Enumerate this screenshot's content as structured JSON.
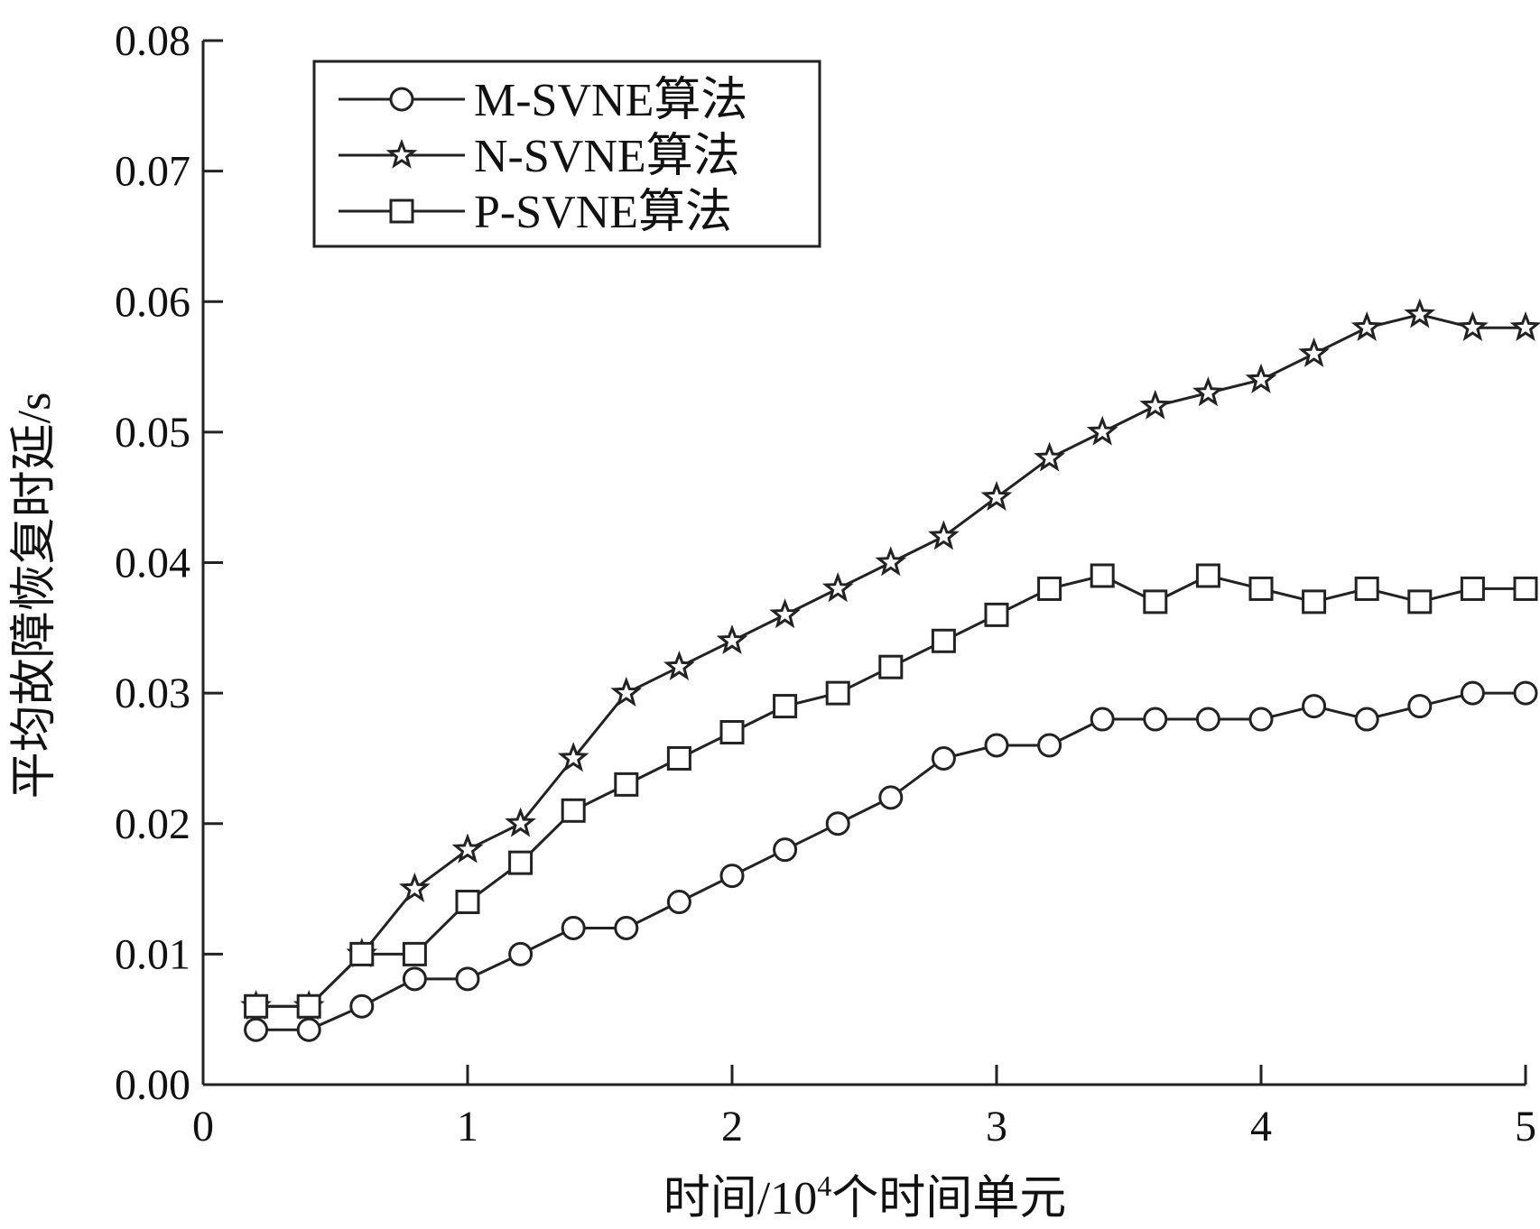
{
  "chart_data": {
    "type": "line",
    "title": "",
    "xlabel": "时间/10",
    "xlabel_sup": "4",
    "xlabel_suffix": "个时间单元",
    "ylabel": "平均故障恢复时延/s",
    "xlim": [
      0,
      5
    ],
    "ylim": [
      0,
      0.08
    ],
    "xticks": [
      0,
      1,
      2,
      3,
      4,
      5
    ],
    "yticks": [
      "0.00",
      "0.01",
      "0.02",
      "0.03",
      "0.04",
      "0.05",
      "0.06",
      "0.07",
      "0.08"
    ],
    "grid": false,
    "legend_position": "top-left",
    "x": [
      0.2,
      0.4,
      0.6,
      0.8,
      1.0,
      1.2,
      1.4,
      1.6,
      1.8,
      2.0,
      2.2,
      2.4,
      2.6,
      2.8,
      3.0,
      3.2,
      3.4,
      3.6,
      3.8,
      4.0,
      4.2,
      4.4,
      4.6,
      4.8,
      5.0
    ],
    "series": [
      {
        "name": "M-SVNE算法",
        "marker": "circle",
        "values": [
          0.0042,
          0.0042,
          0.006,
          0.0081,
          0.0081,
          0.01,
          0.012,
          0.012,
          0.014,
          0.016,
          0.018,
          0.02,
          0.022,
          0.025,
          0.026,
          0.026,
          0.028,
          0.028,
          0.028,
          0.028,
          0.029,
          0.028,
          0.029,
          0.03,
          0.03
        ]
      },
      {
        "name": "N-SVNE算法",
        "marker": "star",
        "values": [
          0.006,
          0.006,
          0.01,
          0.015,
          0.018,
          0.02,
          0.025,
          0.03,
          0.032,
          0.034,
          0.036,
          0.038,
          0.04,
          0.042,
          0.045,
          0.048,
          0.05,
          0.052,
          0.053,
          0.054,
          0.056,
          0.058,
          0.059,
          0.058,
          0.058
        ]
      },
      {
        "name": "P-SVNE算法",
        "marker": "square",
        "values": [
          0.006,
          0.006,
          0.01,
          0.01,
          0.014,
          0.017,
          0.021,
          0.023,
          0.025,
          0.027,
          0.029,
          0.03,
          0.032,
          0.034,
          0.036,
          0.038,
          0.039,
          0.037,
          0.039,
          0.038,
          0.037,
          0.038,
          0.037,
          0.038,
          0.038
        ]
      }
    ]
  }
}
